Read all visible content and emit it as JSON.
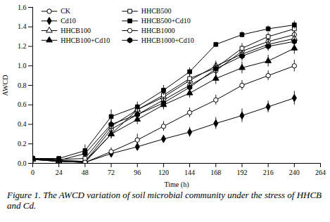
{
  "chart_data": {
    "type": "line",
    "caption": "Figure 1. The AWCD variation of soil microbial community under the stress of HHCB and Cd.",
    "x_label": "Time (h)",
    "y_label": "AWCD",
    "x": [
      0,
      24,
      48,
      72,
      96,
      120,
      144,
      168,
      192,
      216,
      240
    ],
    "xlim": [
      0,
      264
    ],
    "xticks": [
      0,
      24,
      48,
      72,
      96,
      120,
      144,
      168,
      192,
      216,
      240,
      264
    ],
    "ylim": [
      0,
      1.6
    ],
    "yticks": [
      {
        "value": 0,
        "label": "0.0"
      },
      0.2,
      0.4,
      0.6,
      0.8,
      {
        "value": 1,
        "label": "1.0"
      },
      1.2,
      1.4,
      1.6
    ],
    "grid": false,
    "legend": "top-left",
    "series": [
      {
        "name": "CK",
        "color": "#000000",
        "marker": "circle-open",
        "values": [
          0.05,
          0.03,
          0.02,
          0.35,
          0.5,
          0.65,
          0.8,
          0.95,
          1.15,
          1.25,
          1.32
        ],
        "errors": [
          0.01,
          0.01,
          0.01,
          0.04,
          0.04,
          0.05,
          0.04,
          0.05,
          0.05,
          0.05,
          0.05
        ]
      },
      {
        "name": "Cd10",
        "color": "#000000",
        "marker": "diamond-filled",
        "values": [
          0.04,
          0.02,
          0.01,
          0.1,
          0.17,
          0.25,
          0.32,
          0.41,
          0.49,
          0.58,
          0.67
        ],
        "errors": [
          0.01,
          0.01,
          0.01,
          0.03,
          0.04,
          0.04,
          0.05,
          0.06,
          0.07,
          0.06,
          0.07
        ]
      },
      {
        "name": "HHCB100",
        "color": "#000000",
        "marker": "triangle-open",
        "values": [
          0.05,
          0.03,
          0.02,
          0.3,
          0.55,
          0.68,
          0.85,
          1.0,
          1.12,
          1.22,
          1.28
        ],
        "errors": [
          0.01,
          0.01,
          0.01,
          0.05,
          0.05,
          0.05,
          0.05,
          0.05,
          0.05,
          0.05,
          0.05
        ]
      },
      {
        "name": "HHCB100+Cd10",
        "color": "#000000",
        "marker": "triangle-filled",
        "values": [
          0.04,
          0.02,
          0.01,
          0.3,
          0.45,
          0.6,
          0.72,
          0.87,
          0.98,
          1.05,
          1.18
        ],
        "errors": [
          0.01,
          0.01,
          0.01,
          0.04,
          0.05,
          0.05,
          0.05,
          0.06,
          0.06,
          0.06,
          0.06
        ]
      },
      {
        "name": "HHCB500",
        "color": "#000000",
        "marker": "square-open",
        "values": [
          0.05,
          0.04,
          0.05,
          0.38,
          0.55,
          0.7,
          0.87,
          0.98,
          1.18,
          1.3,
          1.38
        ],
        "errors": [
          0.01,
          0.01,
          0.02,
          0.05,
          0.05,
          0.05,
          0.05,
          0.05,
          0.05,
          0.04,
          0.04
        ]
      },
      {
        "name": "HHCB500+Cd10",
        "color": "#000000",
        "marker": "square-filled",
        "values": [
          0.05,
          0.05,
          0.13,
          0.48,
          0.58,
          0.75,
          0.94,
          1.22,
          1.32,
          1.38,
          1.42
        ],
        "errors": [
          0.01,
          0.01,
          0.06,
          0.07,
          0.05,
          0.05,
          0.04,
          0.02,
          0.03,
          0.03,
          0.04
        ]
      },
      {
        "name": "HHCB1000",
        "color": "#000000",
        "marker": "circle-open",
        "values": [
          0.04,
          0.02,
          0.01,
          0.12,
          0.24,
          0.38,
          0.52,
          0.65,
          0.8,
          0.9,
          1.0
        ],
        "errors": [
          0.01,
          0.01,
          0.01,
          0.04,
          0.06,
          0.05,
          0.05,
          0.05,
          0.05,
          0.05,
          0.06
        ]
      },
      {
        "name": "HHCB1000+Cd10",
        "color": "#000000",
        "marker": "hexagon-filled",
        "values": [
          0.05,
          0.03,
          0.1,
          0.4,
          0.5,
          0.62,
          0.78,
          0.97,
          1.1,
          1.2,
          1.25
        ],
        "errors": [
          0.01,
          0.01,
          0.02,
          0.05,
          0.05,
          0.05,
          0.05,
          0.05,
          0.05,
          0.05,
          0.05
        ]
      }
    ]
  }
}
